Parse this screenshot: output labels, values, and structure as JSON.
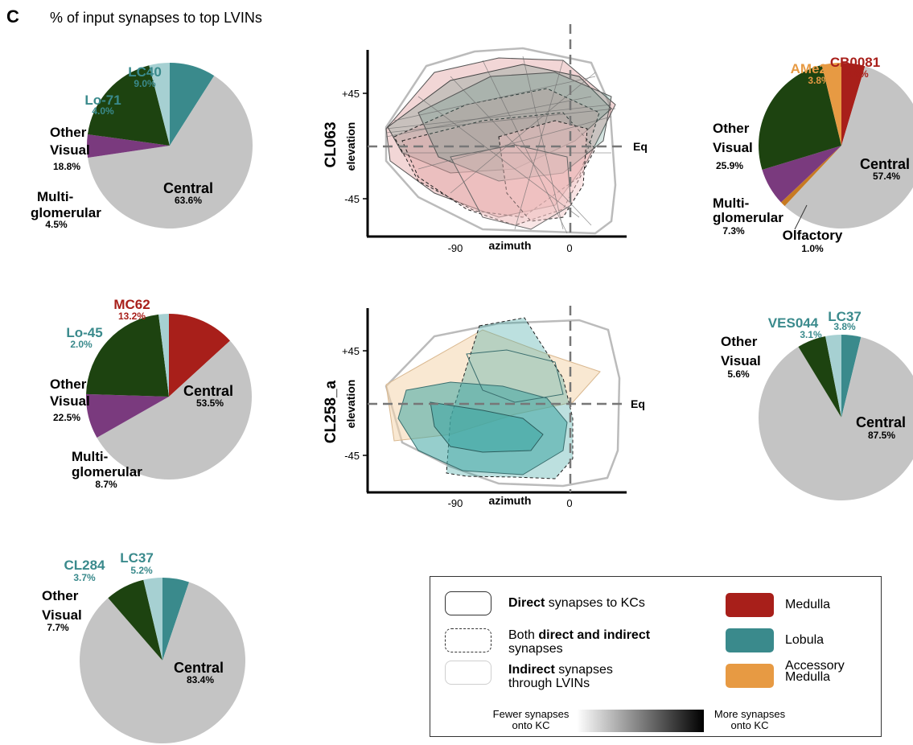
{
  "panel_letter": "C",
  "title": "% of input synapses to top LVINs",
  "colors": {
    "central": "#c4c4c4",
    "other_visual": "#1d4310",
    "multiglomerular": "#7a3a7e",
    "lobula": "#3a8a8c",
    "lobula_light": "#a6d0d2",
    "medulla": "#a81f1a",
    "accessory_medulla": "#e79a43",
    "olfactory": "#c77a22",
    "hull_red": "#d98a8a",
    "hull_teal": "#3fa6a3",
    "hull_peach": "#f4d6ad"
  },
  "chart_data": [
    {
      "type": "pie",
      "slices": [
        {
          "label": "LC40",
          "value": 9.0,
          "pct": "9.0%",
          "color": "#3a8a8c"
        },
        {
          "label": "Central",
          "value": 63.6,
          "pct": "63.6%",
          "color": "#c4c4c4"
        },
        {
          "label": "Multi-glomerular",
          "value": 4.5,
          "pct": "4.5%",
          "color": "#7a3a7e"
        },
        {
          "label": "Other Visual",
          "value": 18.8,
          "pct": "18.8%",
          "color": "#1d4310"
        },
        {
          "label": "Lo-71",
          "value": 4.0,
          "pct": "4.0%",
          "color": "#a6d0d2"
        }
      ]
    },
    {
      "type": "pie",
      "slices": [
        {
          "label": "CB0081",
          "value": 4.6,
          "pct": "4.6%",
          "color": "#a81f1a"
        },
        {
          "label": "Central",
          "value": 57.4,
          "pct": "57.4%",
          "color": "#c4c4c4"
        },
        {
          "label": "Olfactory",
          "value": 1.0,
          "pct": "1.0%",
          "color": "#c77a22"
        },
        {
          "label": "Multi-glomerular",
          "value": 7.3,
          "pct": "7.3%",
          "color": "#7a3a7e"
        },
        {
          "label": "Other Visual",
          "value": 25.9,
          "pct": "25.9%",
          "color": "#1d4310"
        },
        {
          "label": "AMe20",
          "value": 3.8,
          "pct": "3.8%",
          "color": "#e79a43"
        }
      ]
    },
    {
      "type": "pie",
      "slices": [
        {
          "label": "MC62",
          "value": 13.2,
          "pct": "13.2%",
          "color": "#a81f1a"
        },
        {
          "label": "Central",
          "value": 53.5,
          "pct": "53.5%",
          "color": "#c4c4c4"
        },
        {
          "label": "Multi-glomerular",
          "value": 8.7,
          "pct": "8.7%",
          "color": "#7a3a7e"
        },
        {
          "label": "Other Visual",
          "value": 22.5,
          "pct": "22.5%",
          "color": "#1d4310"
        },
        {
          "label": "Lo-45",
          "value": 2.0,
          "pct": "2.0%",
          "color": "#a6d0d2"
        }
      ]
    },
    {
      "type": "pie",
      "slices": [
        {
          "label": "LC37",
          "value": 3.8,
          "pct": "3.8%",
          "color": "#3a8a8c"
        },
        {
          "label": "Central",
          "value": 87.5,
          "pct": "87.5%",
          "color": "#c4c4c4"
        },
        {
          "label": "Other Visual",
          "value": 5.6,
          "pct": "5.6%",
          "color": "#1d4310"
        },
        {
          "label": "VES044",
          "value": 3.1,
          "pct": "3.1%",
          "color": "#a6d0d2"
        }
      ]
    },
    {
      "type": "pie",
      "slices": [
        {
          "label": "LC37",
          "value": 5.2,
          "pct": "5.2%",
          "color": "#3a8a8c"
        },
        {
          "label": "Central",
          "value": 83.4,
          "pct": "83.4%",
          "color": "#c4c4c4"
        },
        {
          "label": "Other Visual",
          "value": 7.7,
          "pct": "7.7%",
          "color": "#1d4310"
        },
        {
          "label": "CL284",
          "value": 3.7,
          "pct": "3.7%",
          "color": "#a6d0d2"
        }
      ]
    },
    {
      "type": "area",
      "neuron_label": "CL063",
      "xlabel": "azimuth",
      "ylabel": "elevation",
      "x_ticks": [
        "-90",
        "0"
      ],
      "y_ticks": [
        "+45",
        "-45"
      ],
      "equator_label": "Eq"
    },
    {
      "type": "area",
      "neuron_label": "CL258_a",
      "xlabel": "azimuth",
      "ylabel": "elevation",
      "x_ticks": [
        "-90",
        "0"
      ],
      "y_ticks": [
        "+45",
        "-45"
      ],
      "equator_label": "Eq"
    }
  ],
  "pie_labels": {
    "p1": {
      "lc40": "LC40",
      "lc40_pct": "9.0%",
      "lo71": "Lo-71",
      "lo71_pct": "4.0%",
      "other1": "Other",
      "other2": "Visual",
      "other_pct": "18.8%",
      "central": "Central",
      "central_pct": "63.6%",
      "multi1": "Multi-",
      "multi2": "glomerular",
      "multi_pct": "4.5%"
    },
    "p2": {
      "ame20": "AMe20",
      "ame20_pct": "3.8%",
      "cb0081": "CB0081",
      "cb0081_pct": "4.6%",
      "other1": "Other",
      "other2": "Visual",
      "other_pct": "25.9%",
      "central": "Central",
      "central_pct": "57.4%",
      "multi1": "Multi-",
      "multi2": "glomerular",
      "multi_pct": "7.3%",
      "olf": "Olfactory",
      "olf_pct": "1.0%"
    },
    "p3": {
      "mc62": "MC62",
      "mc62_pct": "13.2%",
      "lo45": "Lo-45",
      "lo45_pct": "2.0%",
      "other1": "Other",
      "other2": "Visual",
      "other_pct": "22.5%",
      "central": "Central",
      "central_pct": "53.5%",
      "multi1": "Multi-",
      "multi2": "glomerular",
      "multi_pct": "8.7%"
    },
    "p4": {
      "ves044": "VES044",
      "ves044_pct": "3.1%",
      "lc37": "LC37",
      "lc37_pct": "3.8%",
      "other1": "Other",
      "other2": "Visual",
      "other_pct": "5.6%",
      "central": "Central",
      "central_pct": "87.5%"
    },
    "p5": {
      "cl284": "CL284",
      "cl284_pct": "3.7%",
      "lc37": "LC37",
      "lc37_pct": "5.2%",
      "other1": "Other",
      "other2": "Visual",
      "other_pct": "7.7%",
      "central": "Central",
      "central_pct": "83.4%"
    }
  },
  "legend": {
    "direct_bold": "Direct",
    "direct_rest": " synapses to KCs",
    "both_pre": "Both ",
    "both_bold": "direct and indirect",
    "both_line2": "synapses",
    "indirect_bold": "Indirect",
    "indirect_rest": " synapses",
    "indirect_line2": "through LVINs",
    "medulla": "Medulla",
    "lobula": "Lobula",
    "accessory1": "Accessory",
    "accessory2": "Medulla",
    "fewer1": "Fewer synapses",
    "fewer2": "onto KC",
    "more1": "More synapses",
    "more2": "onto KC"
  }
}
